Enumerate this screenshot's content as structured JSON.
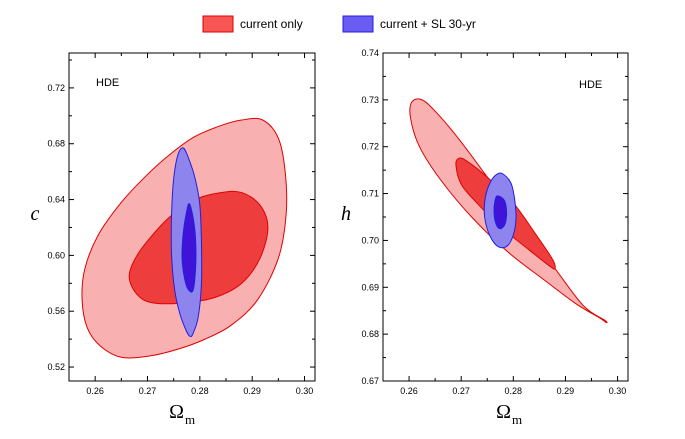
{
  "legend": [
    {
      "label": "current only",
      "fill": "#f85555",
      "stroke": "#e00000"
    },
    {
      "label": "current + SL 30-yr",
      "fill": "#6a5cf0",
      "stroke": "#2020e0"
    }
  ],
  "colors": {
    "red_outer": "#f8b0b0",
    "red_inner": "#ee3d3d",
    "red_stroke": "#e00000",
    "blue_outer": "#8d84ee",
    "blue_inner": "#3f14d8",
    "blue_stroke": "#2020e0"
  },
  "chart_data": [
    {
      "type": "contour",
      "panel_label": "HDE",
      "xlabel": "Ω",
      "xlabel_sub": "m",
      "ylabel": "c",
      "xlim": [
        0.255,
        0.302
      ],
      "ylim": [
        0.51,
        0.745
      ],
      "xticks": [
        0.26,
        0.27,
        0.28,
        0.29,
        0.3
      ],
      "xtick_labels": [
        "0.26",
        "0.27",
        "0.28",
        "0.29",
        "0.30"
      ],
      "yticks": [
        0.52,
        0.56,
        0.6,
        0.64,
        0.68,
        0.72
      ],
      "ytick_labels": [
        "0.52",
        "0.56",
        "0.60",
        "0.64",
        "0.68",
        "0.72"
      ],
      "contours": [
        {
          "series": "current only",
          "level": "2sigma",
          "points": [
            [
              0.265,
              0.527
            ],
            [
              0.2705,
              0.528
            ],
            [
              0.276,
              0.533
            ],
            [
              0.281,
              0.54
            ],
            [
              0.286,
              0.55
            ],
            [
              0.291,
              0.568
            ],
            [
              0.295,
              0.598
            ],
            [
              0.2965,
              0.63
            ],
            [
              0.2963,
              0.66
            ],
            [
              0.295,
              0.684
            ],
            [
              0.292,
              0.697
            ],
            [
              0.288,
              0.697
            ],
            [
              0.284,
              0.693
            ],
            [
              0.279,
              0.685
            ],
            [
              0.2745,
              0.673
            ],
            [
              0.27,
              0.658
            ],
            [
              0.265,
              0.638
            ],
            [
              0.2605,
              0.614
            ],
            [
              0.258,
              0.59
            ],
            [
              0.2575,
              0.568
            ],
            [
              0.2585,
              0.548
            ],
            [
              0.261,
              0.535
            ]
          ]
        },
        {
          "series": "current only",
          "level": "1sigma",
          "points": [
            [
              0.271,
              0.566
            ],
            [
              0.277,
              0.566
            ],
            [
              0.283,
              0.57
            ],
            [
              0.288,
              0.58
            ],
            [
              0.2915,
              0.598
            ],
            [
              0.293,
              0.62
            ],
            [
              0.2915,
              0.636
            ],
            [
              0.288,
              0.645
            ],
            [
              0.284,
              0.645
            ],
            [
              0.279,
              0.64
            ],
            [
              0.275,
              0.63
            ],
            [
              0.2715,
              0.617
            ],
            [
              0.268,
              0.6
            ],
            [
              0.2665,
              0.585
            ],
            [
              0.268,
              0.572
            ]
          ]
        },
        {
          "series": "current + SL 30-yr",
          "level": "2sigma",
          "points": [
            [
              0.2787,
              0.544
            ],
            [
              0.2797,
              0.556
            ],
            [
              0.2803,
              0.58
            ],
            [
              0.2803,
              0.61
            ],
            [
              0.28,
              0.636
            ],
            [
              0.2791,
              0.655
            ],
            [
              0.2778,
              0.67
            ],
            [
              0.2768,
              0.677
            ],
            [
              0.2758,
              0.672
            ],
            [
              0.275,
              0.655
            ],
            [
              0.2746,
              0.63
            ],
            [
              0.2746,
              0.6
            ],
            [
              0.2752,
              0.575
            ],
            [
              0.2762,
              0.558
            ],
            [
              0.2774,
              0.546
            ],
            [
              0.2781,
              0.542
            ]
          ]
        },
        {
          "series": "current + SL 30-yr",
          "level": "1sigma",
          "points": [
            [
              0.2787,
              0.575
            ],
            [
              0.2792,
              0.592
            ],
            [
              0.2792,
              0.61
            ],
            [
              0.2788,
              0.625
            ],
            [
              0.278,
              0.637
            ],
            [
              0.2774,
              0.63
            ],
            [
              0.2768,
              0.615
            ],
            [
              0.2766,
              0.598
            ],
            [
              0.277,
              0.585
            ],
            [
              0.2777,
              0.576
            ]
          ]
        }
      ]
    },
    {
      "type": "contour",
      "panel_label": "HDE",
      "xlabel": "Ω",
      "xlabel_sub": "m",
      "ylabel": "h",
      "xlim": [
        0.255,
        0.302
      ],
      "ylim": [
        0.67,
        0.74
      ],
      "xticks": [
        0.26,
        0.27,
        0.28,
        0.29,
        0.3
      ],
      "xtick_labels": [
        "0.26",
        "0.27",
        "0.28",
        "0.29",
        "0.30"
      ],
      "yticks": [
        0.67,
        0.68,
        0.69,
        0.7,
        0.71,
        0.72,
        0.73,
        0.74
      ],
      "ytick_labels": [
        "0.67",
        "0.68",
        "0.69",
        "0.70",
        "0.71",
        "0.72",
        "0.73",
        "0.74"
      ],
      "contours": [
        {
          "series": "current only",
          "level": "2sigma",
          "points": [
            [
              0.2605,
              0.7295
            ],
            [
              0.2625,
              0.73
            ],
            [
              0.2655,
              0.727
            ],
            [
              0.27,
              0.721
            ],
            [
              0.276,
              0.712
            ],
            [
              0.282,
              0.703
            ],
            [
              0.288,
              0.694
            ],
            [
              0.2935,
              0.686
            ],
            [
              0.2975,
              0.683
            ],
            [
              0.2978,
              0.6825
            ],
            [
              0.2965,
              0.6835
            ],
            [
              0.292,
              0.6865
            ],
            [
              0.286,
              0.6915
            ],
            [
              0.279,
              0.6975
            ],
            [
              0.272,
              0.705
            ],
            [
              0.266,
              0.713
            ],
            [
              0.262,
              0.72
            ],
            [
              0.2603,
              0.726
            ]
          ]
        },
        {
          "series": "current only",
          "level": "1sigma",
          "points": [
            [
              0.2695,
              0.7175
            ],
            [
              0.271,
              0.717
            ],
            [
              0.275,
              0.7135
            ],
            [
              0.28,
              0.708
            ],
            [
              0.2845,
              0.701
            ],
            [
              0.2875,
              0.696
            ],
            [
              0.288,
              0.694
            ],
            [
              0.287,
              0.6945
            ],
            [
              0.283,
              0.698
            ],
            [
              0.2775,
              0.703
            ],
            [
              0.273,
              0.708
            ],
            [
              0.27,
              0.712
            ],
            [
              0.269,
              0.716
            ]
          ]
        },
        {
          "series": "current + SL 30-yr",
          "level": "2sigma",
          "points": [
            [
              0.278,
              0.7142
            ],
            [
              0.2797,
              0.7118
            ],
            [
              0.2805,
              0.706
            ],
            [
              0.2802,
              0.702
            ],
            [
              0.279,
              0.699
            ],
            [
              0.2772,
              0.6986
            ],
            [
              0.2755,
              0.701
            ],
            [
              0.2745,
              0.705
            ],
            [
              0.2746,
              0.709
            ],
            [
              0.2755,
              0.7122
            ],
            [
              0.2767,
              0.714
            ]
          ]
        },
        {
          "series": "current + SL 30-yr",
          "level": "1sigma",
          "points": [
            [
              0.277,
              0.7095
            ],
            [
              0.2783,
              0.7085
            ],
            [
              0.2787,
              0.706
            ],
            [
              0.2784,
              0.7035
            ],
            [
              0.2775,
              0.7025
            ],
            [
              0.2767,
              0.7035
            ],
            [
              0.2763,
              0.706
            ],
            [
              0.2765,
              0.7085
            ]
          ]
        }
      ]
    }
  ]
}
